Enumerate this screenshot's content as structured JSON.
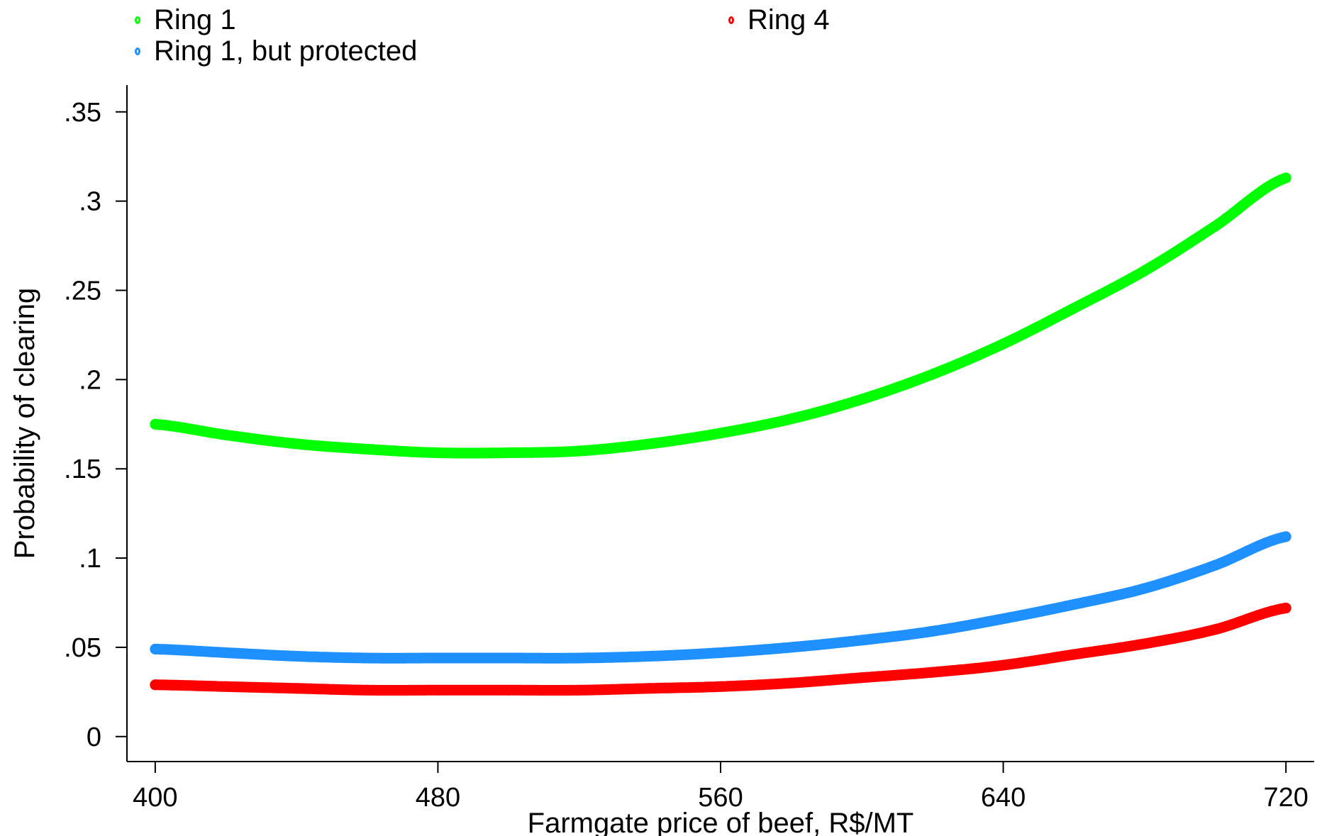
{
  "chart_data": {
    "type": "scatter",
    "xlabel": "Farmgate price of beef, R$/MT",
    "ylabel": "Probability of clearing",
    "xlim": [
      392,
      728
    ],
    "ylim": [
      -0.014,
      0.365
    ],
    "xticks": [
      400,
      480,
      560,
      640,
      720
    ],
    "xtick_labels": [
      "400",
      "480",
      "560",
      "640",
      "720"
    ],
    "yticks": [
      0,
      0.05,
      0.1,
      0.15,
      0.2,
      0.25,
      0.3,
      0.35
    ],
    "ytick_labels": [
      "0",
      ".05",
      ".1",
      ".15",
      ".2",
      ".25",
      ".3",
      ".35"
    ],
    "grid": false,
    "legend_position": "top",
    "series": [
      {
        "name": "Ring 1",
        "color": "#00ff00",
        "x": [
          400,
          420,
          440,
          460,
          480,
          500,
          520,
          540,
          560,
          580,
          600,
          620,
          640,
          660,
          680,
          700,
          720
        ],
        "values": [
          0.175,
          0.169,
          0.164,
          0.161,
          0.159,
          0.159,
          0.16,
          0.164,
          0.17,
          0.178,
          0.189,
          0.203,
          0.22,
          0.24,
          0.261,
          0.286,
          0.313
        ]
      },
      {
        "name": "Ring 1, but protected",
        "color": "#1e90ff",
        "x": [
          400,
          420,
          440,
          460,
          480,
          500,
          520,
          540,
          560,
          580,
          600,
          620,
          640,
          660,
          680,
          700,
          720
        ],
        "values": [
          0.049,
          0.047,
          0.045,
          0.044,
          0.044,
          0.044,
          0.044,
          0.045,
          0.047,
          0.05,
          0.054,
          0.059,
          0.066,
          0.074,
          0.083,
          0.096,
          0.112
        ]
      },
      {
        "name": "Ring 4",
        "color": "#ff0000",
        "x": [
          400,
          420,
          440,
          460,
          480,
          500,
          520,
          540,
          560,
          580,
          600,
          620,
          640,
          660,
          680,
          700,
          720
        ],
        "values": [
          0.029,
          0.028,
          0.027,
          0.026,
          0.026,
          0.026,
          0.026,
          0.027,
          0.028,
          0.03,
          0.033,
          0.036,
          0.04,
          0.046,
          0.052,
          0.06,
          0.072
        ]
      }
    ]
  }
}
